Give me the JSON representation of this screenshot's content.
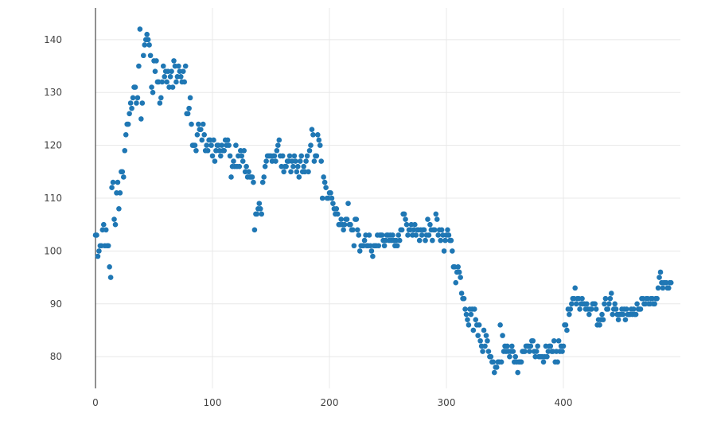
{
  "chart_data": {
    "type": "scatter",
    "title": "",
    "xlabel": "",
    "ylabel": "",
    "xlim": [
      0,
      500
    ],
    "ylim": [
      74,
      146
    ],
    "x_ticks": [
      0,
      100,
      200,
      300,
      400
    ],
    "y_ticks": [
      80,
      90,
      100,
      110,
      120,
      130,
      140
    ],
    "grid": true,
    "legend": "none",
    "point_color": "#1f77b4",
    "series": [
      {
        "values": [
          103,
          103,
          99,
          100,
          101,
          101,
          104,
          105,
          101,
          104,
          101,
          101,
          97,
          95,
          112,
          113,
          106,
          105,
          111,
          113,
          108,
          111,
          115,
          115,
          114,
          119,
          122,
          124,
          124,
          126,
          128,
          127,
          129,
          131,
          131,
          128,
          129,
          135,
          142,
          125,
          128,
          137,
          139,
          140,
          141,
          140,
          139,
          137,
          131,
          130,
          136,
          134,
          136,
          132,
          132,
          128,
          129,
          132,
          135,
          133,
          134,
          132,
          134,
          131,
          133,
          134,
          131,
          136,
          135,
          132,
          133,
          135,
          134,
          133,
          132,
          134,
          132,
          135,
          126,
          126,
          127,
          129,
          124,
          120,
          120,
          120,
          119,
          122,
          124,
          123,
          123,
          121,
          124,
          122,
          119,
          120,
          119,
          121,
          121,
          120,
          118,
          121,
          117,
          119,
          120,
          120,
          119,
          118,
          120,
          119,
          119,
          121,
          120,
          121,
          120,
          118,
          114,
          116,
          117,
          116,
          120,
          116,
          118,
          116,
          119,
          118,
          117,
          119,
          115,
          116,
          114,
          115,
          114,
          114,
          114,
          113,
          104,
          107,
          107,
          108,
          109,
          108,
          107,
          113,
          114,
          116,
          117,
          118,
          118,
          118,
          118,
          117,
          118,
          118,
          117,
          119,
          120,
          121,
          118,
          116,
          118,
          115,
          116,
          116,
          117,
          117,
          118,
          115,
          117,
          116,
          118,
          117,
          115,
          116,
          114,
          117,
          118,
          115,
          116,
          115,
          117,
          118,
          115,
          119,
          120,
          123,
          122,
          117,
          118,
          118,
          122,
          121,
          120,
          117,
          110,
          114,
          113,
          112,
          110,
          110,
          111,
          111,
          110,
          109,
          108,
          107,
          108,
          107,
          105,
          105,
          106,
          105,
          104,
          105,
          106,
          106,
          109,
          105,
          105,
          104,
          104,
          101,
          106,
          106,
          104,
          103,
          100,
          101,
          101,
          101,
          102,
          103,
          101,
          101,
          103,
          101,
          100,
          99,
          101,
          101,
          101,
          103,
          101,
          103,
          103,
          103,
          102,
          101,
          102,
          103,
          103,
          102,
          103,
          102,
          103,
          102,
          101,
          102,
          101,
          103,
          102,
          104,
          104,
          107,
          107,
          106,
          105,
          103,
          104,
          104,
          105,
          103,
          104,
          105,
          103,
          104,
          104,
          102,
          104,
          103,
          104,
          104,
          102,
          103,
          106,
          103,
          105,
          104,
          102,
          104,
          104,
          107,
          106,
          103,
          104,
          102,
          104,
          103,
          100,
          102,
          103,
          104,
          103,
          102,
          102,
          100,
          97,
          97,
          94,
          96,
          97,
          96,
          95,
          92,
          91,
          91,
          89,
          88,
          87,
          86,
          89,
          88,
          89,
          85,
          89,
          87,
          86,
          84,
          86,
          83,
          82,
          81,
          85,
          82,
          84,
          83,
          81,
          80,
          80,
          79,
          79,
          77,
          78,
          78,
          79,
          79,
          86,
          79,
          84,
          81,
          82,
          81,
          82,
          81,
          80,
          81,
          82,
          81,
          79,
          80,
          79,
          77,
          79,
          79,
          79,
          81,
          81,
          81,
          82,
          82,
          82,
          81,
          82,
          83,
          83,
          81,
          80,
          81,
          82,
          80,
          80,
          80,
          80,
          79,
          80,
          82,
          80,
          81,
          82,
          82,
          81,
          81,
          83,
          79,
          81,
          79,
          83,
          81,
          82,
          81,
          82,
          86,
          86,
          85,
          89,
          88,
          89,
          90,
          91,
          91,
          93,
          90,
          91,
          91,
          89,
          90,
          91,
          90,
          90,
          89,
          90,
          89,
          88,
          89,
          89,
          90,
          90,
          90,
          89,
          86,
          87,
          86,
          87,
          88,
          87,
          90,
          91,
          89,
          89,
          90,
          91,
          92,
          88,
          89,
          90,
          89,
          88,
          87,
          88,
          88,
          89,
          88,
          89,
          87,
          89,
          88,
          88,
          88,
          89,
          88,
          89,
          88,
          88,
          90,
          89,
          89,
          89,
          91,
          91,
          90,
          90,
          91,
          91,
          90,
          90,
          91,
          91,
          90,
          90,
          91,
          91,
          93,
          95,
          96,
          94,
          93,
          94,
          94,
          94,
          93,
          93,
          94,
          94
        ]
      }
    ]
  }
}
